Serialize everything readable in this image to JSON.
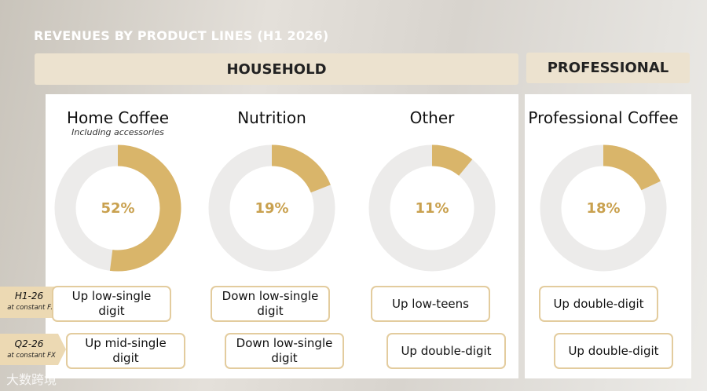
{
  "title": "REVENUES BY PRODUCT LINES (H1 2026)",
  "groups": [
    "HOUSEHOLD",
    "PROFESSIONAL"
  ],
  "row_labels": [
    {
      "period": "H1-26",
      "note": "at constant FX"
    },
    {
      "period": "Q2-26",
      "note": "at constant FX"
    }
  ],
  "watermark": "大数跨境",
  "chart_data": [
    {
      "type": "pie",
      "title": "Home Coffee",
      "subtitle": "Including accessories",
      "values": [
        52
      ],
      "value_labels": [
        "52%"
      ],
      "color": "#d9b56a",
      "annotations": [
        "Up low-single digit",
        "Up mid-single digit"
      ]
    },
    {
      "type": "pie",
      "title": "Nutrition",
      "values": [
        19
      ],
      "value_labels": [
        "19%"
      ],
      "color": "#d9b56a",
      "annotations": [
        "Down low-single digit",
        "Down low-single digit"
      ]
    },
    {
      "type": "pie",
      "title": "Other",
      "values": [
        11
      ],
      "value_labels": [
        "11%"
      ],
      "color": "#d9b56a",
      "annotations": [
        "Up low-teens",
        "Up double-digit"
      ]
    },
    {
      "type": "pie",
      "title": "Professional Coffee",
      "values": [
        18
      ],
      "value_labels": [
        "18%"
      ],
      "color": "#d9b56a",
      "annotations": [
        "Up double-digit",
        "Up double-digit"
      ]
    }
  ]
}
